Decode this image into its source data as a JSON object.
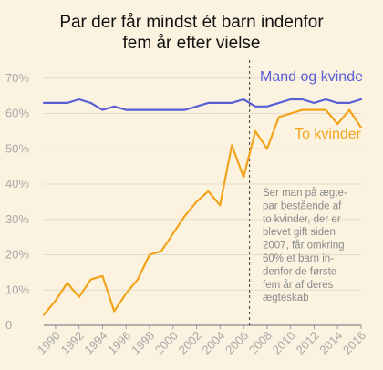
{
  "chart_data": {
    "type": "line",
    "title_lines": [
      "Par der får mindst ét barn indenfor",
      "fem år efter vielse"
    ],
    "x": [
      1989,
      1990,
      1991,
      1992,
      1993,
      1994,
      1995,
      1996,
      1997,
      1998,
      1999,
      2000,
      2001,
      2002,
      2003,
      2004,
      2005,
      2006,
      2007,
      2008,
      2009,
      2010,
      2011,
      2012,
      2013,
      2014,
      2015,
      2016
    ],
    "xticks": [
      1990,
      1992,
      1994,
      1996,
      1998,
      2000,
      2002,
      2004,
      2006,
      2008,
      2010,
      2012,
      2014,
      2016
    ],
    "yticks": [
      0,
      10,
      20,
      30,
      40,
      50,
      60,
      70
    ],
    "ytick_labels": [
      "0",
      "10%",
      "20%",
      "30%",
      "40%",
      "50%",
      "60%",
      "70%"
    ],
    "ylim": [
      0,
      72
    ],
    "xlim": [
      1989,
      2016
    ],
    "reference_line_x": 2006.5,
    "series": [
      {
        "name": "Mand og kvinde",
        "color": "#5b5fd6",
        "values": [
          63,
          63,
          63,
          64,
          63,
          61,
          62,
          61,
          61,
          61,
          61,
          61,
          61,
          62,
          63,
          63,
          63,
          64,
          62,
          62,
          63,
          64,
          64,
          63,
          64,
          63,
          63,
          64
        ]
      },
      {
        "name": "To kvinder",
        "color": "#f2a31b",
        "values": [
          3,
          7,
          12,
          8,
          13,
          14,
          4,
          9,
          13,
          20,
          21,
          26,
          31,
          35,
          38,
          34,
          51,
          42,
          55,
          50,
          59,
          60,
          61,
          61,
          61,
          57,
          61,
          56
        ]
      }
    ],
    "annotation_lines": [
      "Ser man på ægte-",
      "par bestående af",
      "to kvinder, der er",
      "blevet gift siden",
      "2007, får omkring",
      "60% et barn in-",
      "denfor de første",
      "fem år af deres",
      "ægteskab"
    ]
  }
}
